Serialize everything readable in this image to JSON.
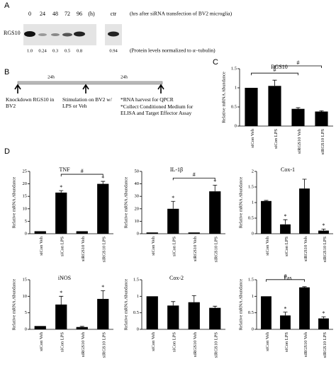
{
  "panel_labels": [
    "A",
    "B",
    "C",
    "D"
  ],
  "blot": {
    "protein": "RGS10",
    "lanes": [
      "0",
      "24",
      "48",
      "72",
      "96",
      "(h)",
      "ctr"
    ],
    "lane_note": "(hrs after siRNA transfection of BV2 microglia)",
    "levels": [
      "1.0",
      "0.24",
      "0.3",
      "0.5",
      "0.8",
      "0.94"
    ],
    "level_note": "(Protein levels normalized to α−tubulin)"
  },
  "timeline": {
    "intervals": [
      "24h",
      "24h"
    ],
    "steps": [
      "Knockdown RGS10 in BV2",
      "Stimulation on BV2 w/ LPS or Veh",
      "*RNA harvest for QPCR",
      "*Collect Conditioned Medium for ELISA and Target Effector Assay"
    ]
  },
  "chart_data": [
    {
      "type": "bar",
      "title": "RGS10",
      "ylabel": "Relative mRNA Abundance",
      "color": "#000000",
      "categories": [
        "siCon Veh",
        "siCon LPS",
        "siRGS10 Veh",
        "siRGS10 LPS"
      ],
      "values": [
        1.0,
        1.05,
        0.45,
        0.38
      ],
      "errors": [
        0,
        0.15,
        0.03,
        0.02
      ],
      "star_labels": [
        null,
        null,
        null,
        null
      ],
      "brackets": [
        {
          "label": "#",
          "categories": [
            "siCon Veh",
            "siRGS10 Veh"
          ]
        },
        {
          "label": "#",
          "categories": [
            "siCon LPS",
            "siRGS10 LPS"
          ]
        }
      ],
      "ylim": [
        0,
        1.5
      ],
      "yticks": [
        0,
        0.5,
        1.0,
        1.5
      ]
    },
    {
      "type": "bar",
      "title": "TNF",
      "ylabel": "Relative mRNA Abundance",
      "color": "#000000",
      "categories": [
        "siCon Veh",
        "siCon LPS",
        "siRGS10 Veh",
        "siRGS10 LPS"
      ],
      "values": [
        1,
        16.5,
        1,
        20
      ],
      "errors": [
        0,
        0.8,
        0,
        1
      ],
      "star_labels": [
        null,
        "*",
        null,
        "*"
      ],
      "brackets": [
        {
          "label": "#",
          "categories": [
            "siCon LPS",
            "siRGS10 LPS"
          ]
        }
      ],
      "ylim": [
        0,
        25
      ],
      "yticks": [
        0,
        5,
        10,
        15,
        20,
        25
      ]
    },
    {
      "type": "bar",
      "title": "IL-1β",
      "ylabel": "Relative mRNA Abundance",
      "color": "#000000",
      "categories": [
        "siCon Veh",
        "siCon LPS",
        "siRGS10 Veh",
        "siRGS10 LPS"
      ],
      "values": [
        1,
        20,
        1,
        34
      ],
      "errors": [
        0,
        6,
        0,
        5
      ],
      "star_labels": [
        null,
        "*",
        null,
        "*"
      ],
      "brackets": [
        {
          "label": "#",
          "categories": [
            "siCon LPS",
            "siRGS10 LPS"
          ]
        }
      ],
      "ylim": [
        0,
        50
      ],
      "yticks": [
        0,
        10,
        20,
        30,
        40,
        50
      ]
    },
    {
      "type": "bar",
      "title": "Cox-1",
      "ylabel": "Relative mRNA Abundance",
      "color": "#000000",
      "categories": [
        "siCon Veh",
        "siCon LPS",
        "siRGS10 Veh",
        "siRGS10 LPS"
      ],
      "values": [
        1.05,
        0.3,
        1.45,
        0.1
      ],
      "errors": [
        0.02,
        0.15,
        0.3,
        0.05
      ],
      "star_labels": [
        null,
        "*",
        null,
        "*"
      ],
      "brackets": [],
      "ylim": [
        0,
        2.0
      ],
      "yticks": [
        0,
        0.5,
        1.0,
        1.5,
        2.0
      ]
    },
    {
      "type": "bar",
      "title": "iNOS",
      "ylabel": "Relative mRNA Abundance",
      "color": "#000000",
      "categories": [
        "siCon Veh",
        "siCon LPS",
        "siRGS10 Veh",
        "siRGS10 LPS"
      ],
      "values": [
        1,
        7.5,
        0.7,
        9.2
      ],
      "errors": [
        0,
        2.5,
        0.2,
        2.5
      ],
      "star_labels": [
        null,
        "*",
        null,
        "*"
      ],
      "brackets": [],
      "ylim": [
        0,
        15
      ],
      "yticks": [
        0,
        5,
        10,
        15
      ]
    },
    {
      "type": "bar",
      "title": "Cox-2",
      "ylabel": "Relative mRNA Abundance",
      "color": "#000000",
      "categories": [
        "siCon Veh",
        "siCon LPS",
        "siRGS10 Veh",
        "siRGS10 LPS"
      ],
      "values": [
        1.0,
        0.72,
        0.82,
        0.65
      ],
      "errors": [
        0,
        0.12,
        0.2,
        0.05
      ],
      "star_labels": [
        null,
        null,
        null,
        null
      ],
      "brackets": [],
      "ylim": [
        0,
        1.5
      ],
      "yticks": [
        0,
        0.5,
        1.0,
        1.5
      ]
    },
    {
      "type": "bar",
      "title": "Fas",
      "ylabel": "Relative mRNA Abundance",
      "color": "#000000",
      "categories": [
        "siCon Veh",
        "siCon LPS",
        "siRGS10 Veh",
        "siRGS10 LPS"
      ],
      "values": [
        1.0,
        0.42,
        1.27,
        0.33
      ],
      "errors": [
        0,
        0.1,
        0.02,
        0.05
      ],
      "star_labels": [
        null,
        "*",
        null,
        "*"
      ],
      "brackets": [
        {
          "label": "#",
          "categories": [
            "siCon Veh",
            "siRGS10 Veh"
          ]
        }
      ],
      "ylim": [
        0,
        1.5
      ],
      "yticks": [
        0,
        0.5,
        1.0,
        1.5
      ]
    }
  ]
}
